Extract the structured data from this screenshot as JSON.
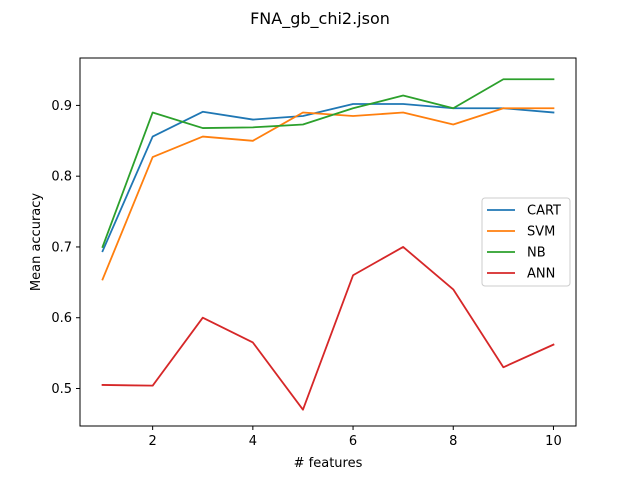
{
  "chart_data": {
    "type": "line",
    "title": "FNA_gb_chi2.json",
    "xlabel": "# features",
    "ylabel": "Mean accuracy",
    "x": [
      1,
      2,
      3,
      4,
      5,
      6,
      7,
      8,
      9,
      10
    ],
    "xlim": [
      0.55,
      10.45
    ],
    "ylim": [
      0.447,
      0.967
    ],
    "xticks": [
      2,
      4,
      6,
      8,
      10
    ],
    "yticks": [
      0.5,
      0.6,
      0.7,
      0.8,
      0.9
    ],
    "xtick_labels": [
      "2",
      "4",
      "6",
      "8",
      "10"
    ],
    "ytick_labels": [
      "0.5",
      "0.6",
      "0.7",
      "0.8",
      "0.9"
    ],
    "grid": false,
    "legend_position": "center-right",
    "series": [
      {
        "name": "CART",
        "color": "#1f77b4",
        "values": [
          0.694,
          0.856,
          0.891,
          0.88,
          0.885,
          0.902,
          0.902,
          0.896,
          0.896,
          0.89
        ]
      },
      {
        "name": "SVM",
        "color": "#ff7f0e",
        "values": [
          0.654,
          0.827,
          0.856,
          0.85,
          0.89,
          0.885,
          0.89,
          0.873,
          0.896,
          0.896
        ]
      },
      {
        "name": "NB",
        "color": "#2ca02c",
        "values": [
          0.7,
          0.89,
          0.868,
          0.869,
          0.873,
          0.896,
          0.914,
          0.896,
          0.937,
          0.937
        ]
      },
      {
        "name": "ANN",
        "color": "#d62728",
        "values": [
          0.505,
          0.504,
          0.6,
          0.565,
          0.47,
          0.66,
          0.7,
          0.64,
          0.53,
          0.562
        ]
      }
    ]
  }
}
